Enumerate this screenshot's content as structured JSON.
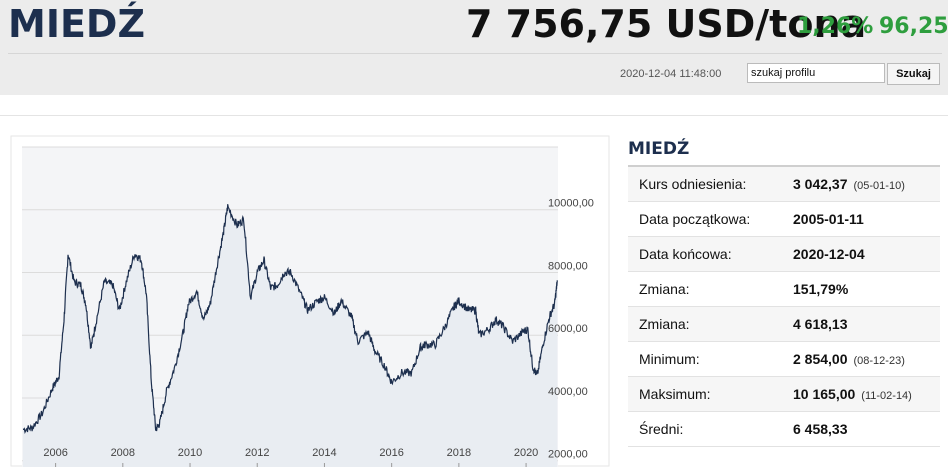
{
  "header": {
    "title": "MIEDŹ",
    "price": "7 756,75 USD/tona",
    "change_pct": "1,26%",
    "change_abs": "96,25",
    "timestamp": "2020-12-04 11:48:00",
    "search_value": "szukaj profilu",
    "search_button": "Szukaj"
  },
  "colors": {
    "title": "#1d2f4e",
    "change": "#2e9e3e",
    "line": "#1d2f4e"
  },
  "panel": {
    "title": "MIEDŹ",
    "rows": [
      {
        "label": "Kurs odniesienia:",
        "value": "3 042,37",
        "date": "(05-01-10)"
      },
      {
        "label": "Data początkowa:",
        "value": "2005-01-11",
        "date": ""
      },
      {
        "label": "Data końcowa:",
        "value": "2020-12-04",
        "date": ""
      },
      {
        "label": "Zmiana:",
        "value": "151,79%",
        "date": ""
      },
      {
        "label": "Zmiana:",
        "value": "4 618,13",
        "date": ""
      },
      {
        "label": "Minimum:",
        "value": "2 854,00",
        "date": "(08-12-23)"
      },
      {
        "label": "Maksimum:",
        "value": "10 165,00",
        "date": "(11-02-14)"
      },
      {
        "label": "Średni:",
        "value": "6 458,33",
        "date": ""
      }
    ]
  },
  "chart_data": {
    "type": "area",
    "xlim": [
      2005.0,
      2020.95
    ],
    "ylim": [
      1800,
      12000
    ],
    "grid": true,
    "x_ticks": [
      "2006",
      "2008",
      "2010",
      "2012",
      "2014",
      "2016",
      "2018",
      "2020"
    ],
    "y_ticks": [
      "10000,00",
      "8000,00",
      "6000,00",
      "4000,00",
      "2000,00"
    ],
    "points": [
      [
        2005.03,
        3000
      ],
      [
        2005.3,
        3050
      ],
      [
        2005.6,
        3500
      ],
      [
        2005.9,
        4300
      ],
      [
        2006.1,
        4700
      ],
      [
        2006.25,
        6500
      ],
      [
        2006.37,
        8600
      ],
      [
        2006.55,
        7700
      ],
      [
        2006.75,
        7600
      ],
      [
        2006.9,
        7000
      ],
      [
        2007.05,
        5600
      ],
      [
        2007.2,
        6400
      ],
      [
        2007.45,
        7700
      ],
      [
        2007.7,
        7600
      ],
      [
        2007.9,
        6800
      ],
      [
        2008.1,
        7700
      ],
      [
        2008.35,
        8600
      ],
      [
        2008.55,
        8400
      ],
      [
        2008.7,
        7300
      ],
      [
        2008.85,
        4500
      ],
      [
        2008.98,
        3000
      ],
      [
        2009.1,
        3200
      ],
      [
        2009.3,
        4200
      ],
      [
        2009.55,
        5000
      ],
      [
        2009.8,
        6100
      ],
      [
        2009.95,
        7000
      ],
      [
        2010.2,
        7400
      ],
      [
        2010.4,
        6500
      ],
      [
        2010.6,
        7000
      ],
      [
        2010.8,
        8200
      ],
      [
        2011.0,
        9300
      ],
      [
        2011.12,
        10100
      ],
      [
        2011.4,
        9500
      ],
      [
        2011.6,
        9700
      ],
      [
        2011.8,
        7200
      ],
      [
        2012.0,
        8000
      ],
      [
        2012.2,
        8400
      ],
      [
        2012.4,
        7500
      ],
      [
        2012.6,
        7600
      ],
      [
        2012.8,
        8000
      ],
      [
        2013.0,
        8000
      ],
      [
        2013.3,
        7300
      ],
      [
        2013.5,
        6800
      ],
      [
        2013.8,
        7100
      ],
      [
        2014.0,
        7200
      ],
      [
        2014.3,
        6700
      ],
      [
        2014.5,
        7100
      ],
      [
        2014.8,
        6600
      ],
      [
        2015.0,
        5800
      ],
      [
        2015.3,
        6100
      ],
      [
        2015.5,
        5500
      ],
      [
        2015.8,
        5000
      ],
      [
        2016.0,
        4500
      ],
      [
        2016.3,
        4800
      ],
      [
        2016.6,
        4800
      ],
      [
        2016.85,
        5600
      ],
      [
        2017.0,
        5700
      ],
      [
        2017.3,
        5700
      ],
      [
        2017.6,
        6300
      ],
      [
        2017.85,
        6900
      ],
      [
        2018.0,
        7100
      ],
      [
        2018.3,
        6800
      ],
      [
        2018.5,
        6800
      ],
      [
        2018.6,
        6000
      ],
      [
        2018.9,
        6200
      ],
      [
        2019.1,
        6500
      ],
      [
        2019.3,
        6300
      ],
      [
        2019.6,
        5800
      ],
      [
        2019.9,
        6100
      ],
      [
        2020.05,
        6200
      ],
      [
        2020.2,
        5000
      ],
      [
        2020.33,
        4700
      ],
      [
        2020.5,
        5700
      ],
      [
        2020.7,
        6600
      ],
      [
        2020.85,
        7000
      ],
      [
        2020.93,
        7750
      ]
    ]
  }
}
